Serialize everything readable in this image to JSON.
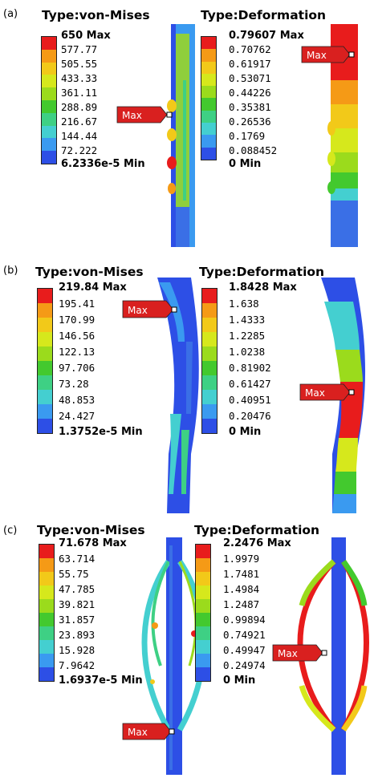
{
  "panels": [
    {
      "label": "(a)",
      "stress": {
        "title": "Type:von-Mises",
        "max": "650 Max",
        "ticks": [
          "577.77",
          "505.55",
          "433.33",
          "361.11",
          "288.89",
          "216.67",
          "144.44",
          "72.222"
        ],
        "min": "6.2336e-5 Min"
      },
      "deformation": {
        "title": "Type:Deformation",
        "max": "0.79607 Max",
        "ticks": [
          "0.70762",
          "0.61917",
          "0.53071",
          "0.44226",
          "0.35381",
          "0.26536",
          "0.1769",
          "0.088452"
        ],
        "min": "0 Min"
      },
      "stress_marker": "Max",
      "deformation_marker": "Max"
    },
    {
      "label": "(b)",
      "stress": {
        "title": "Type:von-Mises",
        "max": "219.84 Max",
        "ticks": [
          "195.41",
          "170.99",
          "146.56",
          "122.13",
          "97.706",
          "73.28",
          "48.853",
          "24.427"
        ],
        "min": "1.3752e-5 Min"
      },
      "deformation": {
        "title": "Type:Deformation",
        "max": "1.8428 Max",
        "ticks": [
          "1.638",
          "1.4333",
          "1.2285",
          "1.0238",
          "0.81902",
          "0.61427",
          "0.40951",
          "0.20476"
        ],
        "min": "0 Min"
      },
      "stress_marker": "Max",
      "deformation_marker": "Max"
    },
    {
      "label": "(c)",
      "stress": {
        "title": "Type:von-Mises",
        "max": "71.678 Max",
        "ticks": [
          "63.714",
          "55.75",
          "47.785",
          "39.821",
          "31.857",
          "23.893",
          "15.928",
          "7.9642"
        ],
        "min": "1.6937e-5 Min"
      },
      "deformation": {
        "title": "Type:Deformation",
        "max": "2.2476 Max",
        "ticks": [
          "1.9979",
          "1.7481",
          "1.4984",
          "1.2487",
          "0.99894",
          "0.74921",
          "0.49947",
          "0.24974"
        ],
        "min": "0 Min"
      },
      "stress_marker": "Max",
      "deformation_marker": "Max"
    }
  ],
  "legend_colors": [
    "#e81c1c",
    "#f59a16",
    "#f2c919",
    "#d6e81c",
    "#9bdb1c",
    "#43c92e",
    "#3ed084",
    "#44cfd0",
    "#3a9af0",
    "#2d4fe6"
  ]
}
